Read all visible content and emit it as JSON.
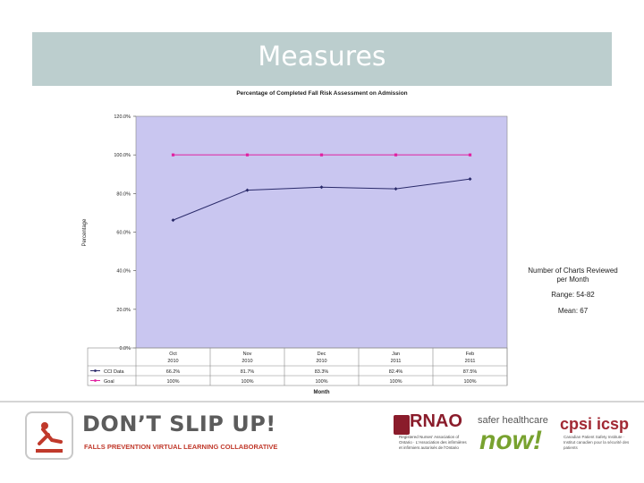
{
  "slide": {
    "title": "Measures"
  },
  "chart_data": {
    "type": "line",
    "title": "Percentage of Completed Fall Risk Assessment on Admission",
    "xlabel": "Month",
    "ylabel": "Percentage",
    "categories": [
      [
        "Oct",
        "2010"
      ],
      [
        "Nov",
        "2010"
      ],
      [
        "Dec",
        "2010"
      ],
      [
        "Jan",
        "2011"
      ],
      [
        "Feb",
        "2011"
      ]
    ],
    "yticks": [
      "0.0%",
      "20.0%",
      "40.0%",
      "60.0%",
      "80.0%",
      "100.0%",
      "120.0%"
    ],
    "ylim": [
      0,
      120
    ],
    "grid": false,
    "series": [
      {
        "name": "CCI Data",
        "values": [
          66.2,
          81.7,
          83.3,
          82.4,
          87.5
        ],
        "labels": [
          "66.2%",
          "81.7%",
          "83.3%",
          "82.4%",
          "87.5%"
        ],
        "color": "#2a2a6a"
      },
      {
        "name": "Goal",
        "values": [
          100,
          100,
          100,
          100,
          100
        ],
        "labels": [
          "100%",
          "100%",
          "100%",
          "100%",
          "100%"
        ],
        "color": "#e020a0"
      }
    ],
    "legend": "data table below plot",
    "plot_background": "#c9c6f0"
  },
  "notes": {
    "charts_reviewed": "Number of Charts Reviewed per Month",
    "range": "Range: 54-82",
    "mean": "Mean: 67"
  },
  "footer": {
    "dsu_title": "DON’T SLIP UP!",
    "dsu_subtitle": "FALLS PREVENTION VIRTUAL LEARNING COLLABORATIVE",
    "rnao": "RNAO",
    "rnao_sub": "Registered Nurses' Association of Ontario · L'Association des infirmières et infirmiers autorisés de l'Ontario",
    "shn_top": "safer healthcare",
    "shn_now": "now!",
    "cpsi": "cpsi icsp",
    "cpsi_sub": "Canadian Patient Safety Institute · Institut canadien pour la sécurité des patients"
  },
  "colors": {
    "header_band": "#bccece",
    "accent_red": "#c0392b",
    "rnao_red": "#8a1c2b",
    "shn_green": "#78a22f"
  }
}
